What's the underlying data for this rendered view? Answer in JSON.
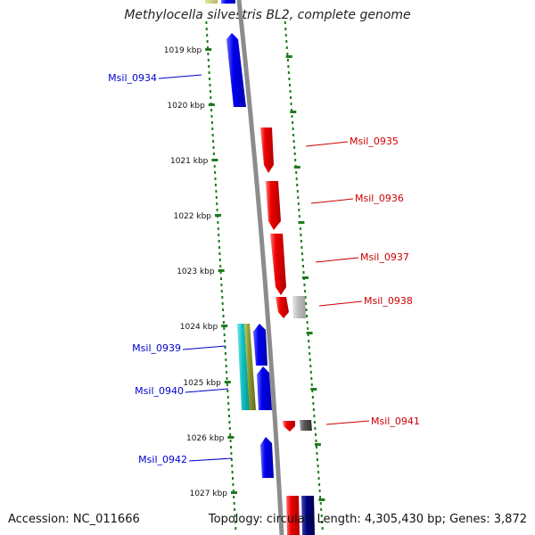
{
  "title": "Methylocella silvestris BL2, complete genome",
  "footer": {
    "accession": "Accession: NC_011666",
    "summary": "Topology: circular; Length: 4,305,430 bp; Genes: 3,872"
  },
  "colors": {
    "backbone": "#8c8c8c",
    "tick": "#1f7a1f",
    "forward_strand": "#0000ee",
    "reverse_strand": "#ee0000",
    "other_gray": "#bfbfbf",
    "cyan": "#11c4c4",
    "olive": "#8a9a2a",
    "navy": "#000080",
    "dark_gray": "#555555"
  },
  "ticks": [
    "1019 kbp",
    "1020 kbp",
    "1021 kbp",
    "1022 kbp",
    "1023 kbp",
    "1024 kbp",
    "1025 kbp",
    "1026 kbp",
    "1027 kbp"
  ],
  "genes": [
    {
      "label": "Msil_0934",
      "strand": "forward"
    },
    {
      "label": "Msil_0935",
      "strand": "reverse"
    },
    {
      "label": "Msil_0936",
      "strand": "reverse"
    },
    {
      "label": "Msil_0937",
      "strand": "reverse"
    },
    {
      "label": "Msil_0938",
      "strand": "reverse"
    },
    {
      "label": "Msil_0939",
      "strand": "forward"
    },
    {
      "label": "Msil_0940",
      "strand": "forward"
    },
    {
      "label": "Msil_0941",
      "strand": "reverse"
    },
    {
      "label": "Msil_0942",
      "strand": "forward"
    }
  ]
}
